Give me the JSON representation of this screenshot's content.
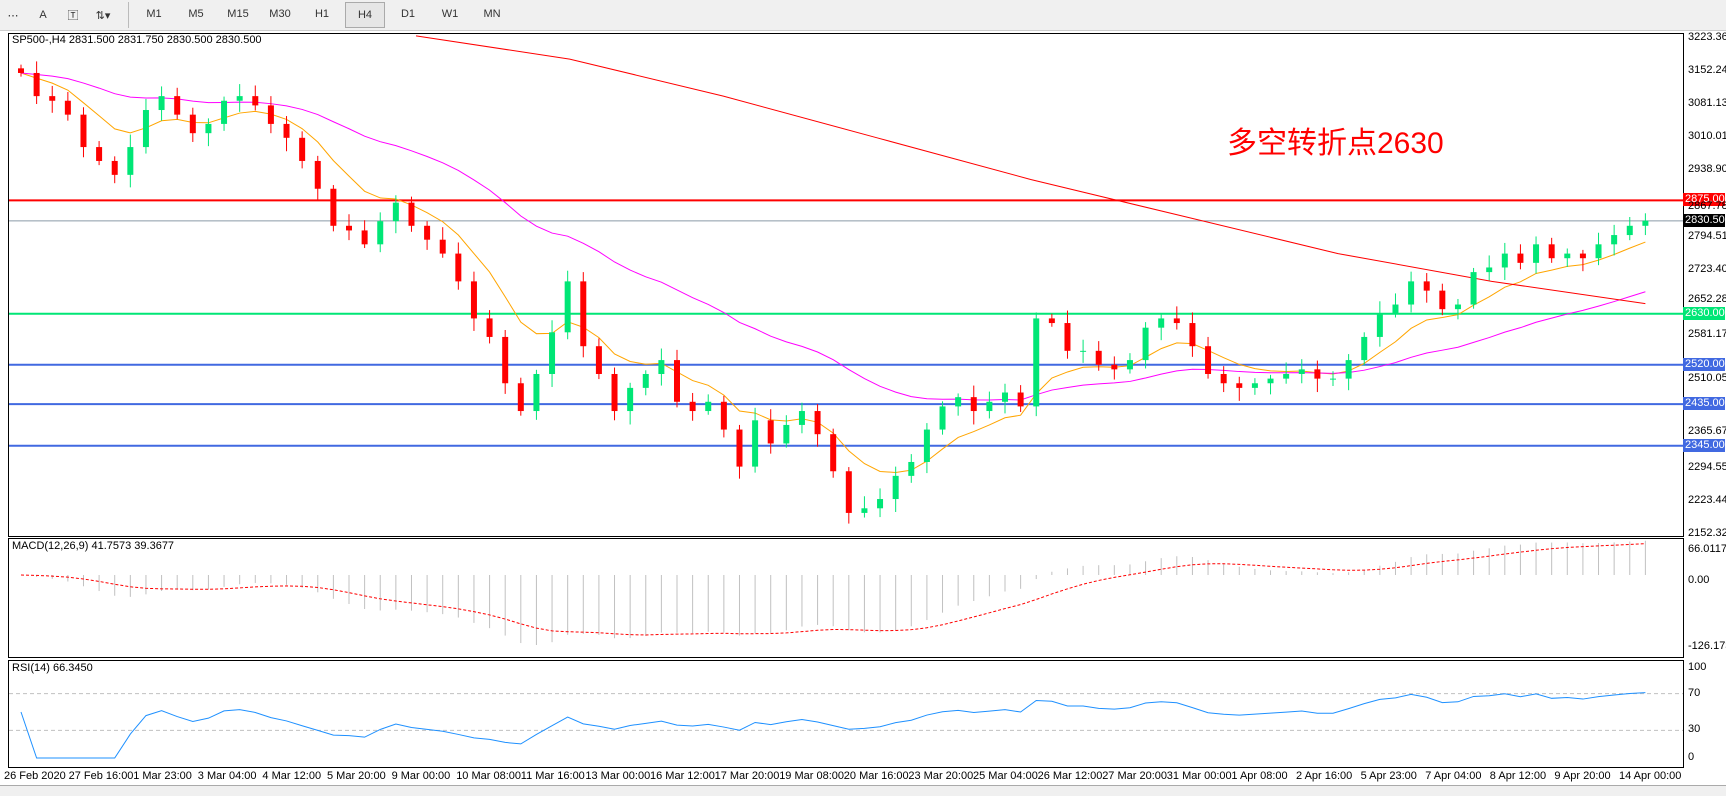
{
  "toolbar": {
    "icons": [
      "period-separator-icon",
      "text-A-icon",
      "text-label-icon",
      "arrows-icon"
    ],
    "timeframes": [
      "M1",
      "M5",
      "M15",
      "M30",
      "H1",
      "H4",
      "D1",
      "W1",
      "MN"
    ],
    "active_timeframe": "H4"
  },
  "main": {
    "header": "SP500-,H4  2831.500 2831.750 2830.500 2830.500",
    "annotation": "多空转折点2630",
    "price_axis": [
      "3223.360",
      "3152.245",
      "3081.130",
      "3010.015",
      "2938.900",
      "2867.785",
      "2794.515",
      "2723.400",
      "2652.285",
      "2581.170",
      "2510.055",
      "2365.670",
      "2294.555",
      "2223.440",
      "2152.325"
    ],
    "levels": [
      {
        "value": "2875.000",
        "color": "#ff0000"
      },
      {
        "value": "2830.500",
        "color": "#000000"
      },
      {
        "value": "2630.000",
        "color": "#00e676"
      },
      {
        "value": "2520.000",
        "color": "#4169e1"
      },
      {
        "value": "2435.000",
        "color": "#4169e1"
      },
      {
        "value": "2345.000",
        "color": "#4169e1"
      }
    ],
    "colors": {
      "bull": "#00e676",
      "bear": "#ff0000",
      "ma_fast": "#ffa500",
      "ma_mid": "#ff00ff",
      "ma_slow": "#ff0000"
    }
  },
  "chart_data": {
    "type": "candlestick",
    "ylim": [
      2152.325,
      3223.36
    ],
    "closes": [
      3150,
      3100,
      3090,
      3060,
      2990,
      2960,
      2930,
      2990,
      3070,
      3100,
      3060,
      3020,
      3040,
      3090,
      3100,
      3080,
      3040,
      3010,
      2960,
      2900,
      2820,
      2810,
      2780,
      2830,
      2870,
      2820,
      2790,
      2760,
      2700,
      2620,
      2580,
      2480,
      2420,
      2500,
      2590,
      2700,
      2560,
      2500,
      2420,
      2470,
      2500,
      2530,
      2440,
      2420,
      2440,
      2380,
      2300,
      2400,
      2350,
      2390,
      2420,
      2370,
      2290,
      2200,
      2210,
      2230,
      2280,
      2310,
      2380,
      2430,
      2450,
      2420,
      2440,
      2460,
      2430,
      2620,
      2610,
      2550,
      2550,
      2520,
      2510,
      2530,
      2600,
      2620,
      2610,
      2560,
      2500,
      2480,
      2470,
      2480,
      2490,
      2500,
      2510,
      2490,
      2490,
      2530,
      2580,
      2630,
      2650,
      2700,
      2680,
      2640,
      2650,
      2720,
      2730,
      2760,
      2740,
      2780,
      2750,
      2760,
      2750,
      2780,
      2800,
      2820,
      2831
    ],
    "ma_slow": [
      3230,
      3180,
      3100,
      3010,
      2920,
      2840,
      2760,
      2700,
      2652
    ]
  },
  "macd": {
    "label": "MACD(12,26,9) 41.7573 39.3677",
    "axis": [
      "66.0117",
      "0.00",
      "-126.173"
    ]
  },
  "rsi": {
    "label": "RSI(14) 66.3450",
    "axis": [
      "100",
      "70",
      "30",
      "0"
    ]
  },
  "dates": [
    "26 Feb 2020",
    "27 Feb 16:00",
    "1 Mar 23:00",
    "3 Mar 04:00",
    "4 Mar 12:00",
    "5 Mar 20:00",
    "9 Mar 00:00",
    "10 Mar 08:00",
    "11 Mar 16:00",
    "13 Mar 00:00",
    "16 Mar 12:00",
    "17 Mar 20:00",
    "19 Mar 08:00",
    "20 Mar 16:00",
    "23 Mar 20:00",
    "25 Mar 04:00",
    "26 Mar 12:00",
    "27 Mar 20:00",
    "31 Mar 00:00",
    "1 Apr 08:00",
    "2 Apr 16:00",
    "5 Apr 23:00",
    "7 Apr 04:00",
    "8 Apr 12:00",
    "9 Apr 20:00",
    "14 Apr 00:00"
  ]
}
